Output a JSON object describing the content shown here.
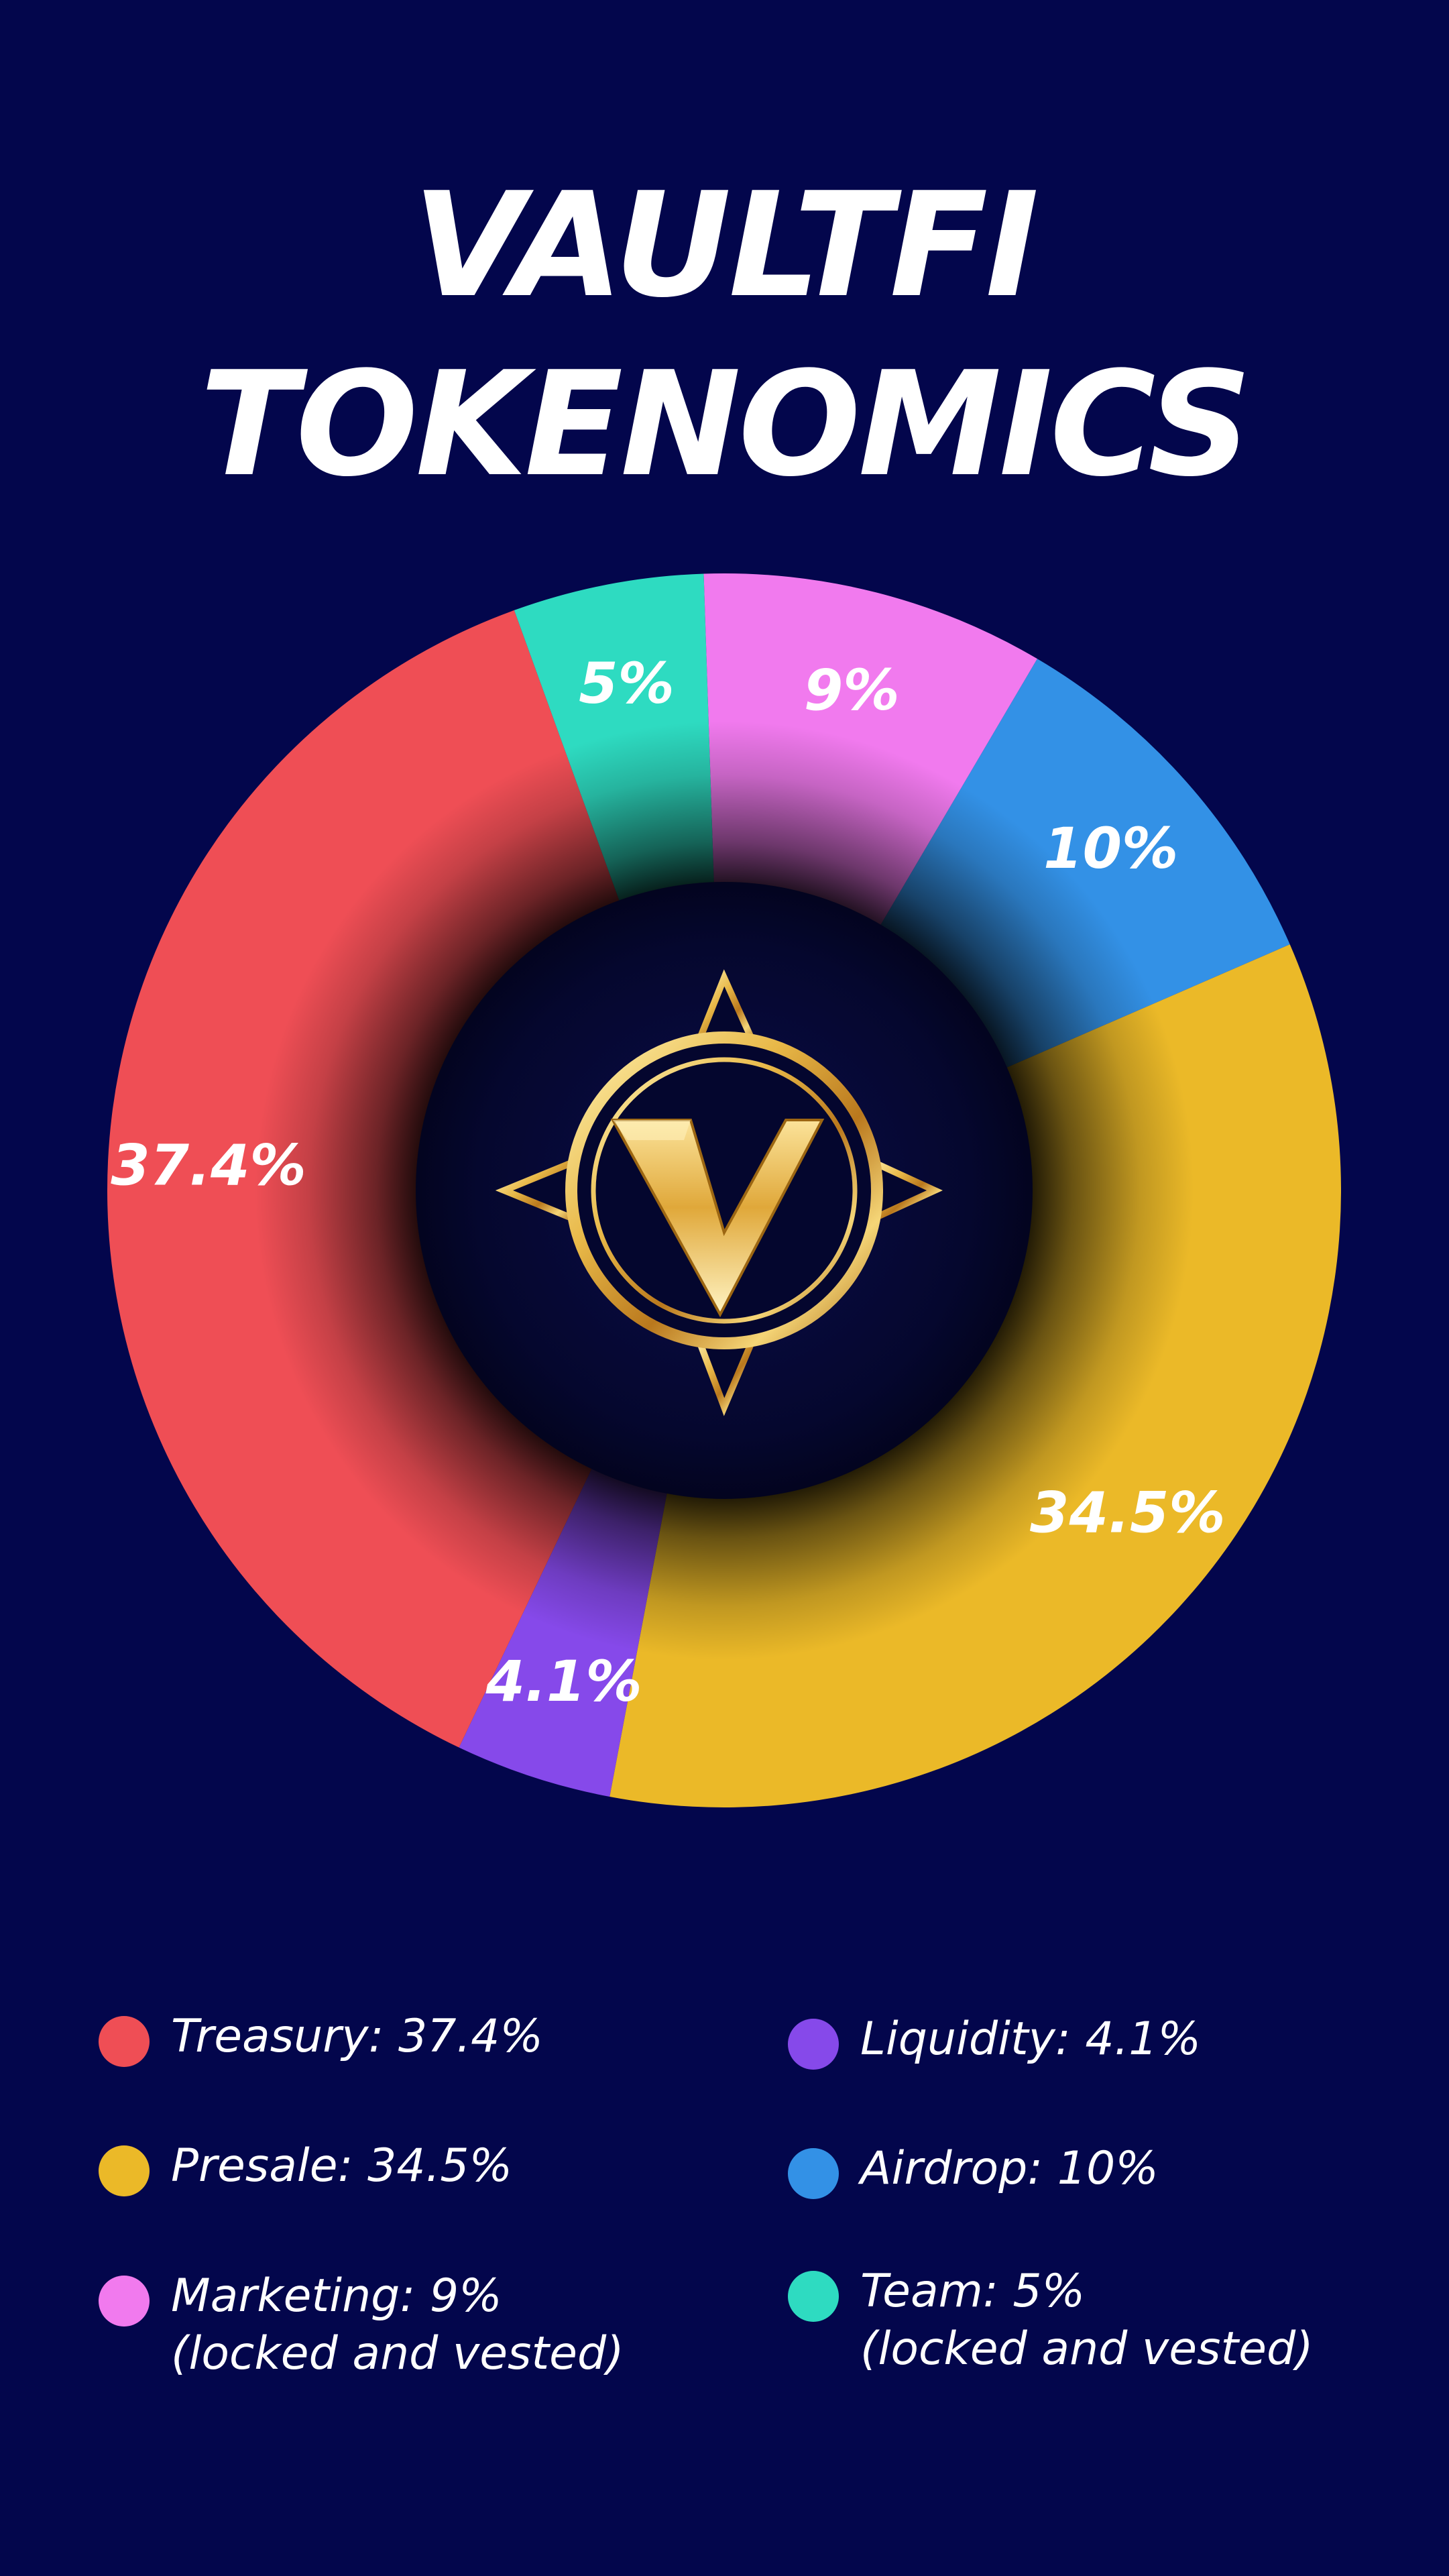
{
  "title": {
    "line1": "VAULTFI",
    "line2": "TOKENOMICS"
  },
  "colors": {
    "background": "#03064c",
    "hole": "#04062e"
  },
  "chart_data": {
    "type": "pie",
    "variant": "donut",
    "title": "VAULTFI TOKENOMICS",
    "unit": "%",
    "slices": [
      {
        "name": "Airdrop",
        "value": 10,
        "label": "10%",
        "color": "#3391e6"
      },
      {
        "name": "Presale",
        "value": 34.5,
        "label": "34.5%",
        "color": "#ebb928"
      },
      {
        "name": "Liquidity",
        "value": 4.1,
        "label": "4.1%",
        "color": "#8649ea"
      },
      {
        "name": "Treasury",
        "value": 37.4,
        "label": "37.4%",
        "color": "#ef4e55"
      },
      {
        "name": "Team",
        "value": 5,
        "label": "5%",
        "color": "#2edbc1"
      },
      {
        "name": "Marketing",
        "value": 9,
        "label": "9%",
        "color": "#f17aee"
      }
    ]
  },
  "legend": {
    "items": [
      {
        "key": "treasury",
        "line1": "Treasury: 37.4%",
        "line2": "",
        "color": "#ef4e55"
      },
      {
        "key": "presale",
        "line1": "Presale: 34.5%",
        "line2": "",
        "color": "#ebb928"
      },
      {
        "key": "marketing",
        "line1": "Marketing: 9%",
        "line2": "(locked and vested)",
        "color": "#f17aee"
      },
      {
        "key": "liquidity",
        "line1": "Liquidity: 4.1%",
        "line2": "",
        "color": "#8649ea"
      },
      {
        "key": "airdrop",
        "line1": "Airdrop: 10%",
        "line2": "",
        "color": "#3391e6"
      },
      {
        "key": "team",
        "line1": "Team: 5%",
        "line2": "(locked and vested)",
        "color": "#2edbc1"
      }
    ]
  },
  "logo": {
    "icon": "vaultfi-compass-v-logo",
    "letter": "V"
  }
}
